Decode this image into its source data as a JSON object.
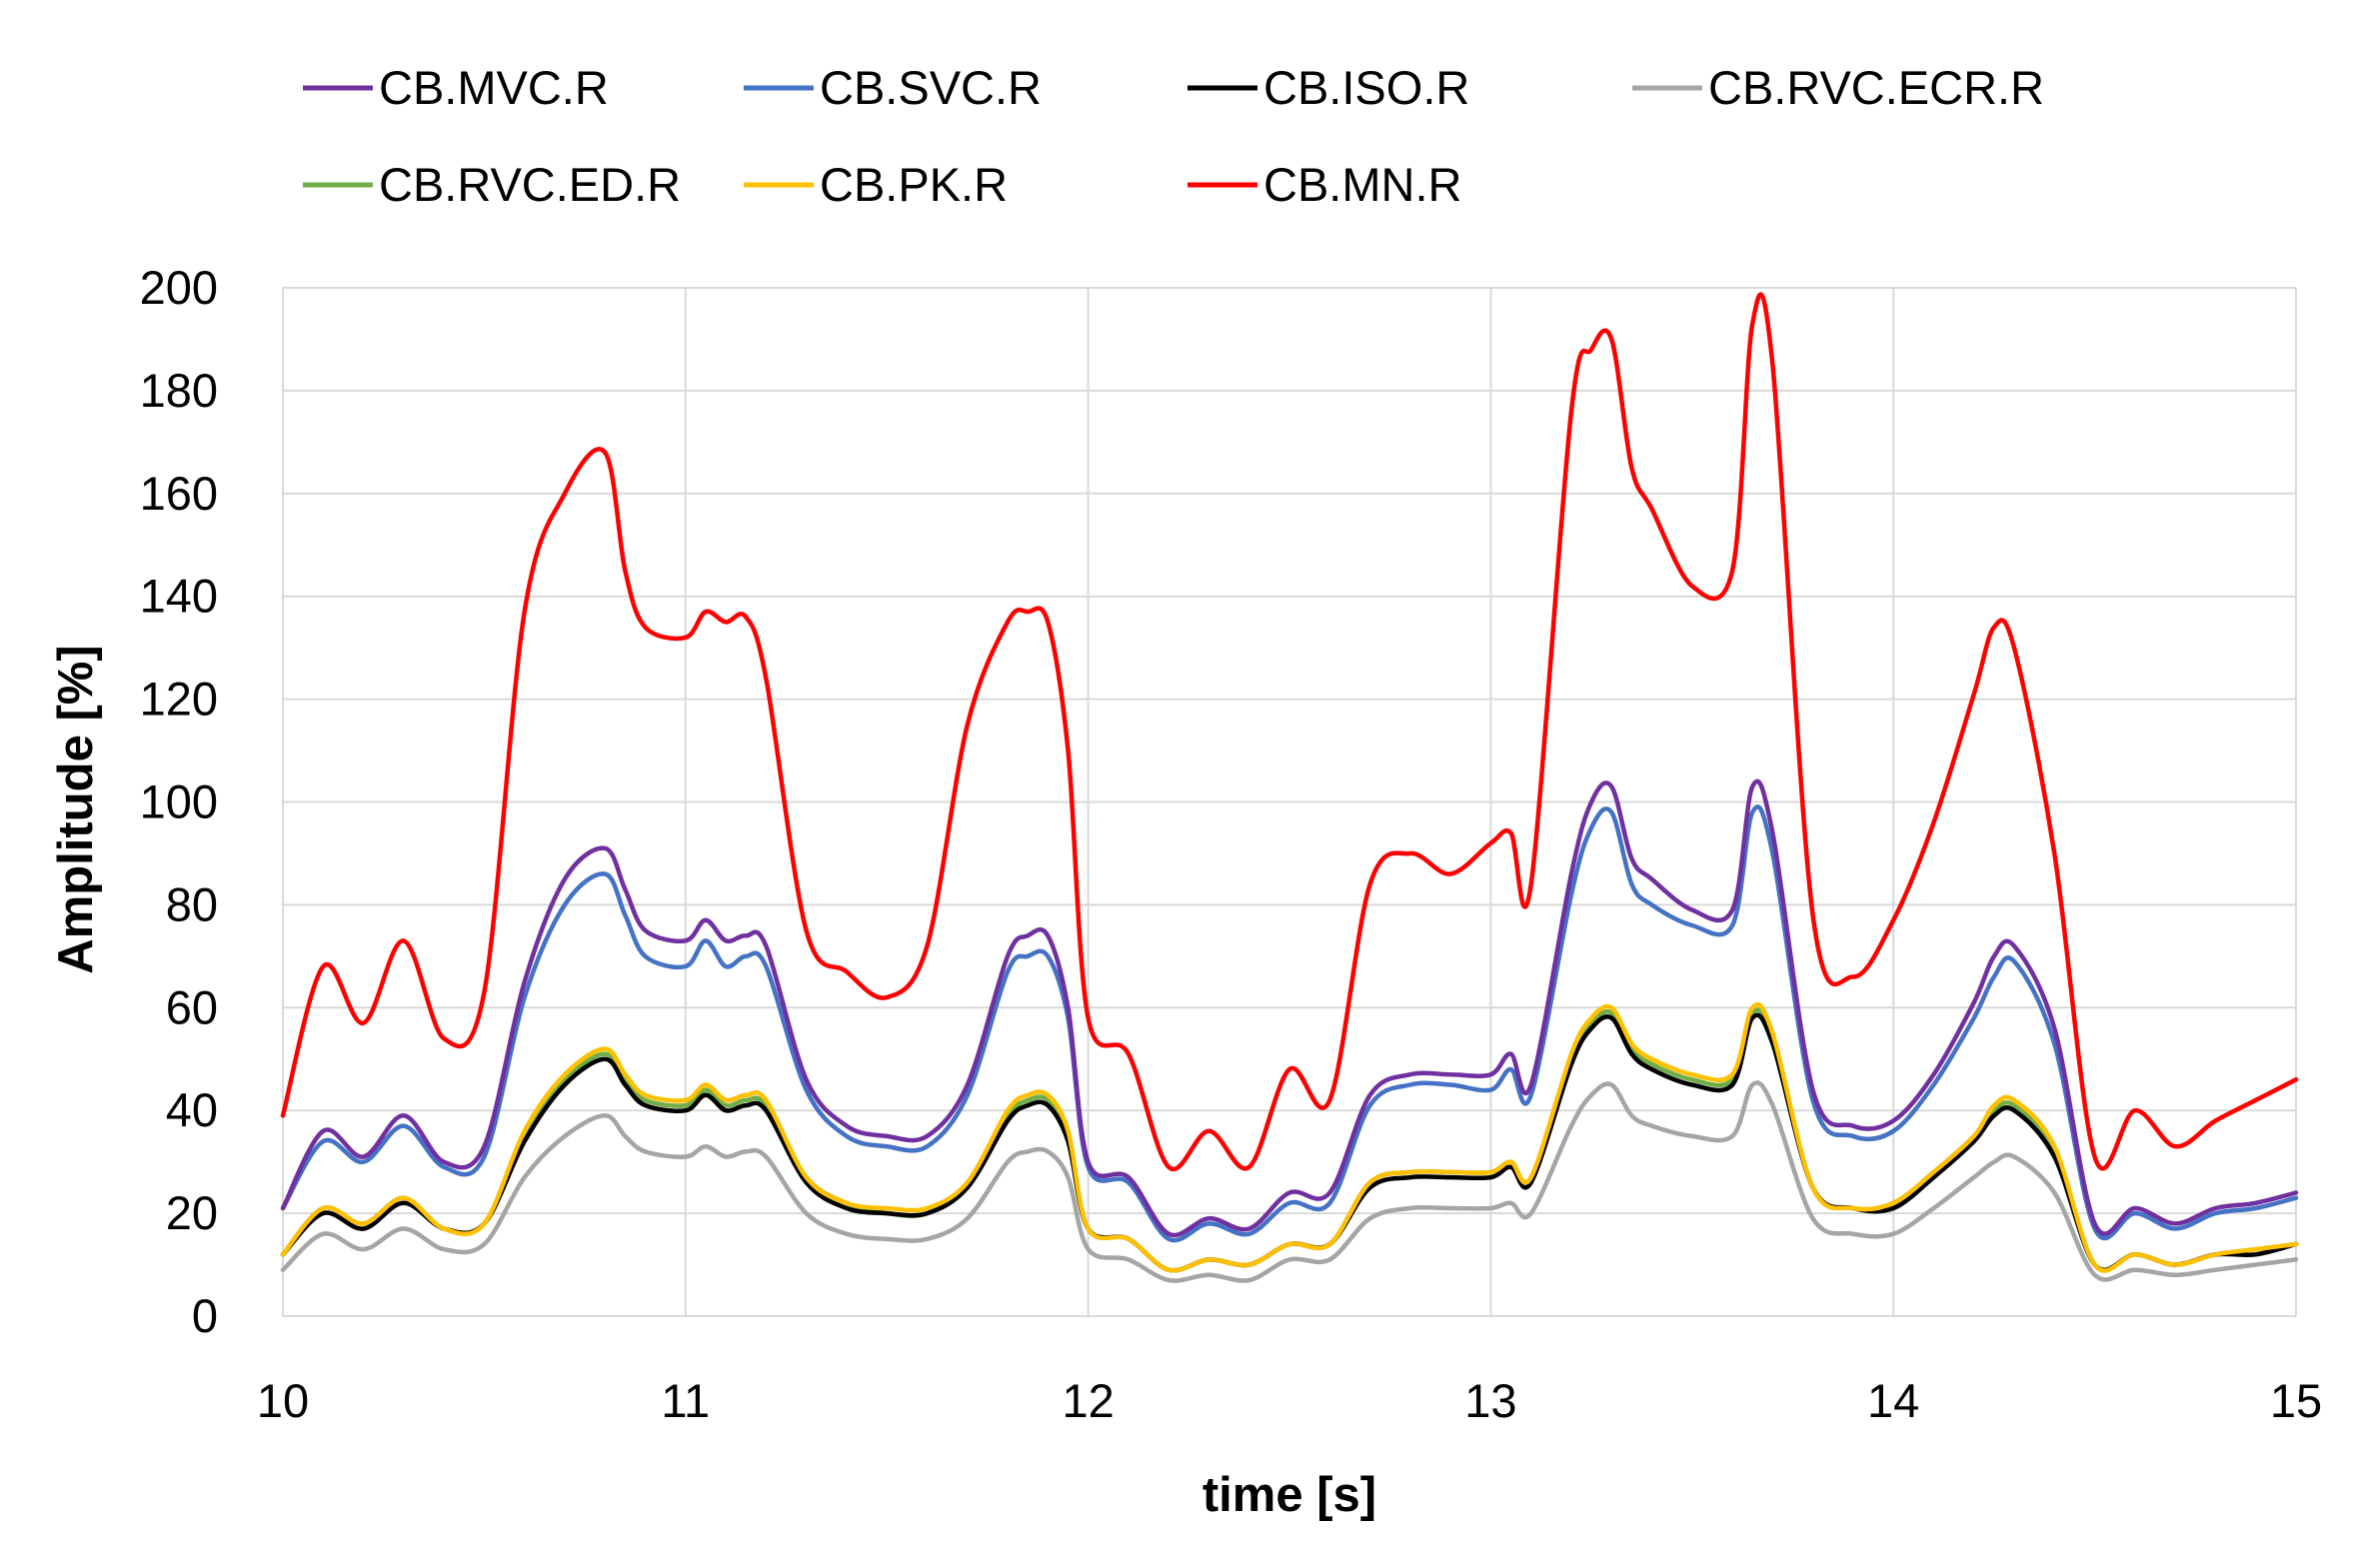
{
  "chart_data": {
    "type": "line",
    "xlabel": "time [s]",
    "ylabel": "Amplitude [%]",
    "xlim": [
      10,
      15
    ],
    "ylim": [
      0,
      200
    ],
    "xticks": [
      10,
      11,
      12,
      13,
      14,
      15
    ],
    "yticks": [
      0,
      20,
      40,
      60,
      80,
      100,
      120,
      140,
      160,
      180,
      200
    ],
    "grid": true,
    "legend_position": "top",
    "x": [
      10.0,
      10.1,
      10.2,
      10.3,
      10.4,
      10.5,
      10.6,
      10.7,
      10.8,
      10.85,
      10.9,
      11.0,
      11.05,
      11.1,
      11.15,
      11.2,
      11.3,
      11.4,
      11.5,
      11.6,
      11.7,
      11.8,
      11.85,
      11.9,
      11.95,
      12.0,
      12.1,
      12.2,
      12.3,
      12.4,
      12.5,
      12.6,
      12.7,
      12.8,
      12.9,
      13.0,
      13.05,
      13.1,
      13.2,
      13.25,
      13.3,
      13.35,
      13.4,
      13.5,
      13.6,
      13.65,
      13.7,
      13.8,
      13.9,
      14.0,
      14.1,
      14.2,
      14.25,
      14.3,
      14.4,
      14.5,
      14.6,
      14.7,
      14.8,
      14.9,
      15.0
    ],
    "series": [
      {
        "name": "CB.MVC.R",
        "color": "#7030a0",
        "values": [
          21,
          36,
          31,
          39,
          30,
          33,
          65,
          85,
          91,
          83,
          75,
          73,
          77,
          73,
          74,
          72,
          46,
          37,
          35,
          35,
          45,
          70,
          74,
          74,
          60,
          30,
          27,
          16,
          19,
          17,
          24,
          24,
          43,
          47,
          47,
          47,
          51,
          45,
          86,
          100,
          103,
          89,
          85,
          79,
          79,
          103,
          94,
          44,
          37,
          38,
          47,
          61,
          70,
          72,
          56,
          18,
          21,
          18,
          21,
          22,
          24
        ]
      },
      {
        "name": "CB.SVC.R",
        "color": "#4472c4",
        "values": [
          21,
          34,
          30,
          37,
          29,
          31,
          62,
          80,
          86,
          78,
          70,
          68,
          73,
          68,
          70,
          68,
          44,
          35,
          33,
          33,
          43,
          67,
          70,
          70,
          58,
          29,
          26,
          15,
          18,
          16,
          22,
          22,
          41,
          45,
          45,
          44,
          48,
          43,
          82,
          95,
          98,
          84,
          80,
          76,
          76,
          98,
          90,
          42,
          35,
          36,
          45,
          58,
          66,
          69,
          53,
          17,
          20,
          17,
          20,
          21,
          23
        ]
      },
      {
        "name": "CB.ISO.R",
        "color": "#000000",
        "values": [
          12,
          20,
          17,
          22,
          17,
          18,
          34,
          45,
          50,
          45,
          41,
          40,
          43,
          40,
          41,
          40,
          26,
          21,
          20,
          20,
          25,
          38,
          41,
          41,
          34,
          17,
          15,
          9,
          11,
          10,
          14,
          14,
          25,
          27,
          27,
          27,
          29,
          26,
          49,
          56,
          58,
          51,
          48,
          45,
          45,
          58,
          53,
          25,
          21,
          21,
          27,
          34,
          39,
          40,
          31,
          10,
          12,
          10,
          12,
          12,
          14
        ]
      },
      {
        "name": "CB.RVC.ECR.R",
        "color": "#a5a5a5",
        "values": [
          9,
          16,
          13,
          17,
          13,
          14,
          27,
          35,
          39,
          35,
          32,
          31,
          33,
          31,
          32,
          31,
          20,
          16,
          15,
          15,
          19,
          30,
          32,
          32,
          27,
          13,
          11,
          7,
          8,
          7,
          11,
          11,
          19,
          21,
          21,
          21,
          22,
          20,
          37,
          43,
          45,
          39,
          37,
          35,
          35,
          45,
          41,
          19,
          16,
          16,
          21,
          27,
          30,
          31,
          24,
          8,
          9,
          8,
          9,
          10,
          11
        ]
      },
      {
        "name": "CB.RVC.ED.R",
        "color": "#70ad47",
        "values": [
          12,
          21,
          18,
          23,
          17,
          18,
          35,
          46,
          51,
          46,
          42,
          41,
          44,
          41,
          42,
          41,
          27,
          22,
          20,
          20,
          26,
          39,
          42,
          42,
          35,
          17,
          15,
          9,
          11,
          10,
          14,
          14,
          26,
          28,
          28,
          28,
          30,
          27,
          50,
          57,
          59,
          52,
          49,
          46,
          46,
          59,
          54,
          25,
          21,
          22,
          28,
          35,
          40,
          41,
          32,
          10,
          12,
          10,
          12,
          13,
          14
        ]
      },
      {
        "name": "CB.PK.R",
        "color": "#ffc000",
        "values": [
          12,
          21,
          18,
          23,
          17,
          18,
          36,
          47,
          52,
          47,
          43,
          42,
          45,
          42,
          43,
          42,
          27,
          22,
          21,
          21,
          26,
          40,
          43,
          43,
          36,
          17,
          15,
          9,
          11,
          10,
          14,
          14,
          26,
          28,
          28,
          28,
          30,
          27,
          51,
          58,
          60,
          53,
          50,
          47,
          47,
          60,
          55,
          25,
          21,
          22,
          28,
          35,
          41,
          42,
          33,
          10,
          12,
          10,
          12,
          13,
          14
        ]
      },
      {
        "name": "CB.MN.R",
        "color": "#ff0000",
        "values": [
          39,
          68,
          57,
          73,
          54,
          63,
          137,
          160,
          168,
          145,
          134,
          132,
          137,
          135,
          136,
          124,
          75,
          67,
          62,
          72,
          115,
          135,
          137,
          135,
          110,
          58,
          51,
          29,
          36,
          29,
          48,
          42,
          84,
          90,
          86,
          92,
          94,
          84,
          176,
          188,
          190,
          165,
          157,
          142,
          145,
          193,
          185,
          78,
          66,
          77,
          96,
          121,
          134,
          130,
          90,
          31,
          40,
          33,
          38,
          42,
          46
        ]
      }
    ]
  }
}
